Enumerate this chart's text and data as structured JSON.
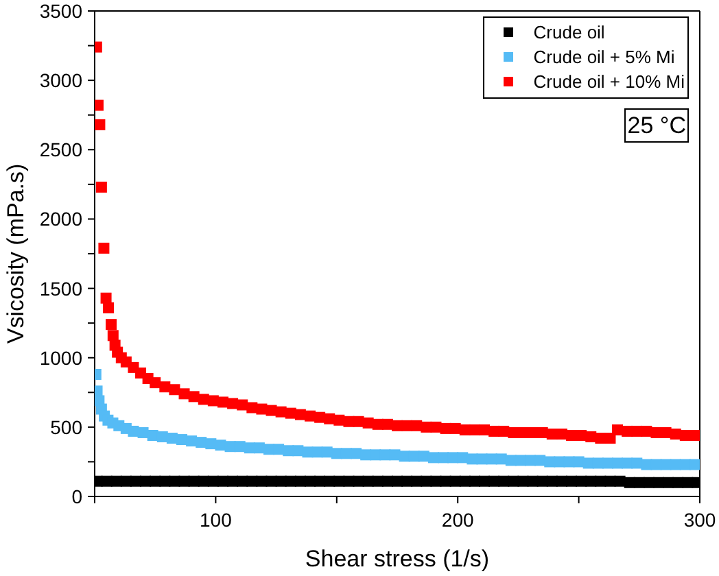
{
  "chart_data": {
    "type": "scatter",
    "xlabel": "Shear stress (1/s)",
    "ylabel": "Vsicosity (mPa.s)",
    "annotations": [
      "25 °C"
    ],
    "xlim": [
      50,
      300
    ],
    "xticks": [
      {
        "value": 50,
        "label": null
      },
      100,
      {
        "value": 150,
        "label": null
      },
      200,
      {
        "value": 250,
        "label": null
      },
      300
    ],
    "ylim": [
      0,
      3500
    ],
    "yticks": [
      0,
      {
        "value": 250,
        "label": null
      },
      500,
      {
        "value": 750,
        "label": null
      },
      1000,
      {
        "value": 1250,
        "label": null
      },
      1500,
      {
        "value": 1750,
        "label": null
      },
      2000,
      {
        "value": 2250,
        "label": null
      },
      2500,
      {
        "value": 2750,
        "label": null
      },
      3000,
      {
        "value": 3250,
        "label": null
      },
      3500
    ],
    "legend": "top right",
    "marker": "square",
    "series": [
      {
        "name": "Crude oil",
        "color": "#000000",
        "x": [
          51,
          55,
          59,
          63,
          67,
          71,
          75,
          79,
          83,
          87,
          91,
          95,
          99,
          103,
          107,
          111,
          115,
          119,
          123,
          127,
          131,
          135,
          139,
          143,
          147,
          151,
          155,
          159,
          163,
          167,
          171,
          175,
          179,
          183,
          187,
          191,
          195,
          199,
          203,
          207,
          211,
          215,
          219,
          223,
          227,
          231,
          235,
          239,
          243,
          247,
          251,
          255,
          259,
          263,
          267,
          271,
          275,
          279,
          283,
          287,
          291,
          295,
          299
        ],
        "values": [
          110,
          110,
          110,
          110,
          110,
          110,
          110,
          110,
          110,
          110,
          110,
          110,
          110,
          110,
          110,
          110,
          110,
          110,
          110,
          110,
          110,
          110,
          110,
          110,
          110,
          110,
          110,
          110,
          110,
          110,
          110,
          110,
          110,
          110,
          110,
          110,
          110,
          110,
          110,
          110,
          110,
          110,
          110,
          110,
          110,
          110,
          110,
          110,
          110,
          110,
          110,
          110,
          110,
          110,
          110,
          100,
          100,
          100,
          100,
          100,
          100,
          100,
          100
        ]
      },
      {
        "name": "Crude oil + 5% Mi",
        "color": "#55bbf5",
        "x": [
          50.5,
          51,
          51.8,
          52.8,
          54,
          55.5,
          57.5,
          60,
          63,
          66,
          70,
          74,
          78,
          82,
          86,
          90,
          94,
          98,
          102,
          106,
          110,
          114,
          118,
          122,
          126,
          130,
          134,
          138,
          142,
          146,
          150,
          154,
          158,
          162,
          166,
          170,
          174,
          178,
          182,
          186,
          190,
          194,
          198,
          202,
          206,
          210,
          214,
          218,
          222,
          226,
          230,
          234,
          238,
          242,
          246,
          250,
          254,
          258,
          262,
          266,
          270,
          274,
          278,
          282,
          286,
          290,
          294,
          298
        ],
        "values": [
          880,
          760,
          690,
          630,
          580,
          550,
          530,
          510,
          490,
          470,
          460,
          440,
          430,
          420,
          410,
          400,
          390,
          380,
          370,
          360,
          360,
          350,
          350,
          340,
          340,
          330,
          330,
          320,
          320,
          320,
          310,
          310,
          310,
          300,
          300,
          300,
          300,
          290,
          290,
          290,
          280,
          280,
          280,
          280,
          270,
          270,
          270,
          270,
          260,
          260,
          260,
          260,
          250,
          250,
          250,
          250,
          240,
          240,
          240,
          240,
          240,
          240,
          230,
          230,
          230,
          230,
          230,
          230
        ]
      },
      {
        "name": "Crude oil + 10% Mi",
        "color": "#ff0000",
        "x": [
          50.8,
          51.4,
          52.1,
          52.8,
          53.8,
          54.7,
          55.7,
          56.8,
          57.6,
          58.4,
          59.4,
          61,
          63,
          66,
          69,
          72,
          75,
          79,
          83,
          87,
          91,
          95,
          99,
          103,
          107,
          111,
          115,
          119,
          123,
          127,
          131,
          135,
          139,
          143,
          147,
          151,
          155,
          159,
          163,
          167,
          171,
          175,
          179,
          183,
          187,
          191,
          195,
          199,
          203,
          207,
          211,
          215,
          219,
          223,
          227,
          231,
          235,
          239,
          243,
          247,
          251,
          255,
          259,
          263,
          266,
          270,
          274,
          278,
          282,
          286,
          290,
          294,
          298
        ],
        "values": [
          3240,
          2820,
          2680,
          2230,
          1790,
          1430,
          1360,
          1240,
          1160,
          1090,
          1040,
          1000,
          970,
          930,
          890,
          850,
          820,
          790,
          770,
          740,
          720,
          700,
          690,
          680,
          670,
          660,
          640,
          630,
          620,
          610,
          600,
          590,
          580,
          570,
          560,
          550,
          540,
          540,
          530,
          520,
          520,
          510,
          510,
          510,
          500,
          500,
          490,
          490,
          480,
          480,
          480,
          470,
          470,
          460,
          460,
          460,
          460,
          450,
          450,
          440,
          440,
          430,
          420,
          420,
          480,
          470,
          470,
          470,
          460,
          460,
          450,
          440,
          440
        ]
      }
    ]
  }
}
